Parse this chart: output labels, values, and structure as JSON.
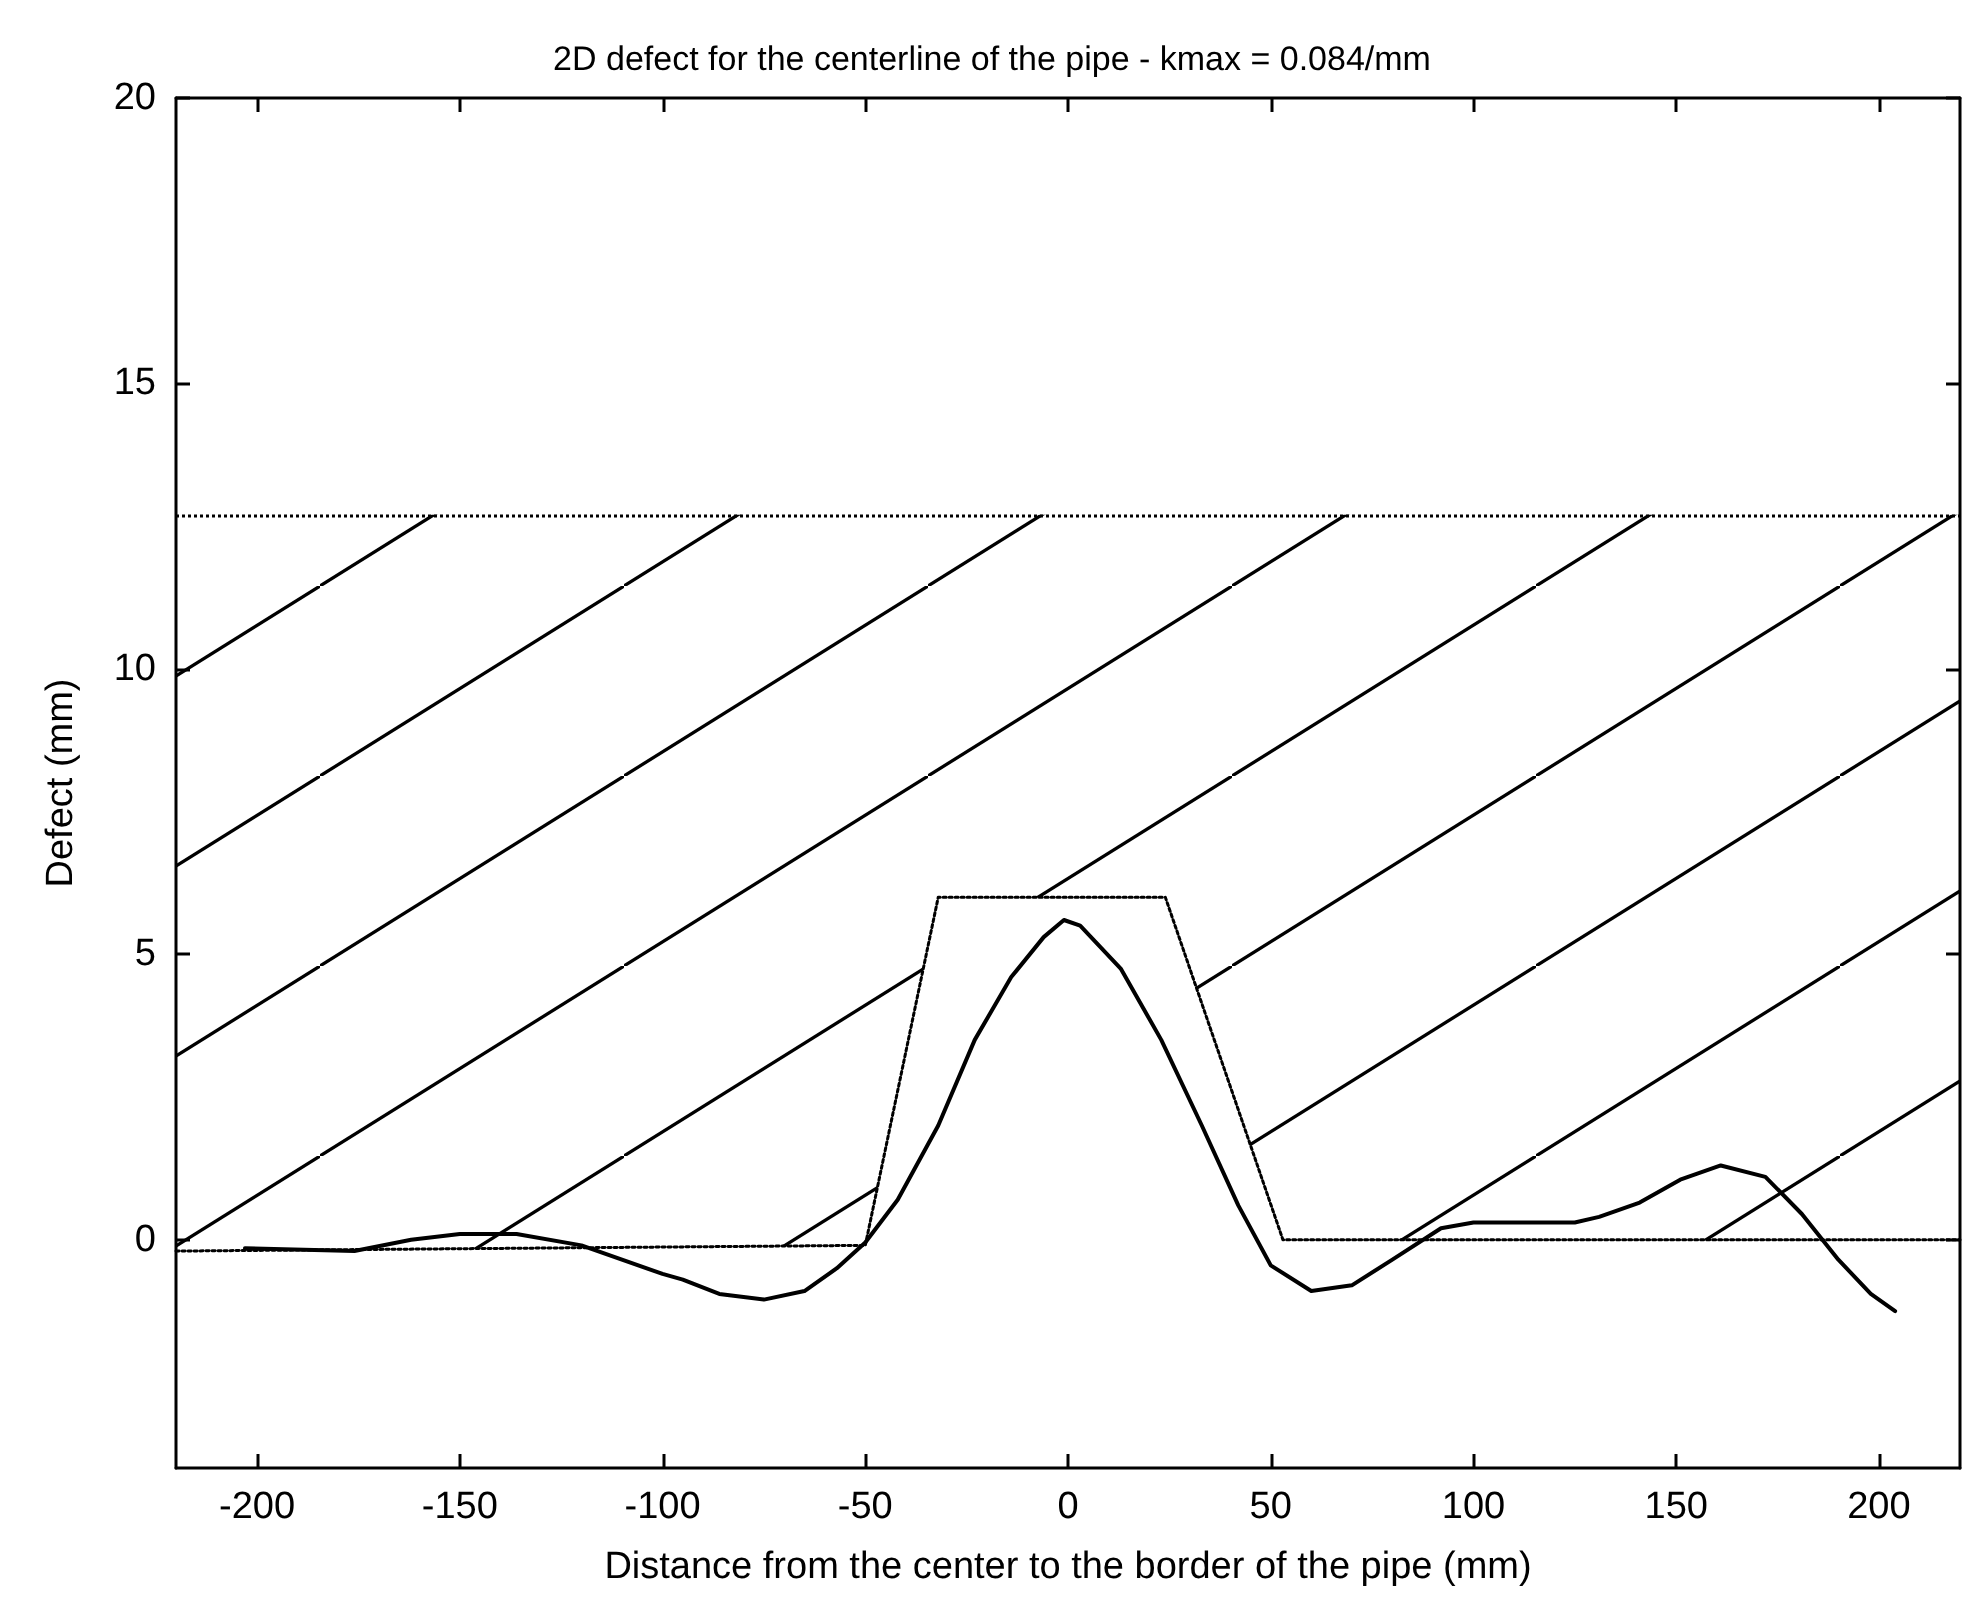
{
  "chart_data": {
    "type": "line",
    "title": "2D defect for the centerline of the pipe - kmax = 0.084/mm",
    "xlabel": "Distance from the center to the border of the pipe (mm)",
    "ylabel": "Defect (mm)",
    "xlim": [
      -220,
      220
    ],
    "xticks": [
      -200,
      -150,
      -100,
      -50,
      0,
      50,
      100,
      150,
      200
    ],
    "ylim": [
      -4,
      20
    ],
    "yticks": [
      0,
      5,
      10,
      15,
      20
    ],
    "grid": false,
    "marker": "none",
    "ref_lines": [
      {
        "axis": "y",
        "value": 12.7,
        "color": "#000000",
        "line_style": "dotted"
      }
    ],
    "series": [
      {
        "color": "#000000",
        "line_style": "solid",
        "x": [
          -203,
          -176,
          -162,
          -150,
          -136,
          -120,
          -100,
          -95,
          -86,
          -75,
          -65,
          -57,
          -50,
          -42,
          -32,
          -23,
          -14,
          -6,
          -1,
          3,
          13,
          23,
          33,
          42,
          50,
          60,
          70,
          80,
          92,
          100,
          125,
          131,
          141,
          151,
          161,
          172,
          181,
          190,
          198,
          204
        ],
        "values": [
          -0.15,
          -0.2,
          0,
          0.1,
          0.1,
          -0.1,
          -0.6,
          -0.7,
          -0.95,
          -1.05,
          -0.9,
          -0.5,
          -0.05,
          0.7,
          2,
          3.5,
          4.6,
          5.3,
          5.6,
          5.5,
          4.75,
          3.5,
          2,
          0.6,
          -0.45,
          -0.9,
          -0.8,
          -0.35,
          0.2,
          0.3,
          0.3,
          0.4,
          0.65,
          1.05,
          1.3,
          1.1,
          0.45,
          -0.35,
          -0.95,
          -1.25
        ]
      },
      {
        "color": "#000000",
        "line_style": "dotted",
        "x": [
          -220,
          -50,
          -32,
          24,
          53,
          220
        ],
        "values": [
          -0.2,
          -0.1,
          6,
          6,
          0,
          0
        ],
        "lower": [
          -0.2,
          -0.1,
          6,
          6,
          0,
          0
        ],
        "upper": [
          12.7,
          12.7,
          12.7,
          12.7,
          12.7,
          12.7
        ]
      }
    ]
  }
}
